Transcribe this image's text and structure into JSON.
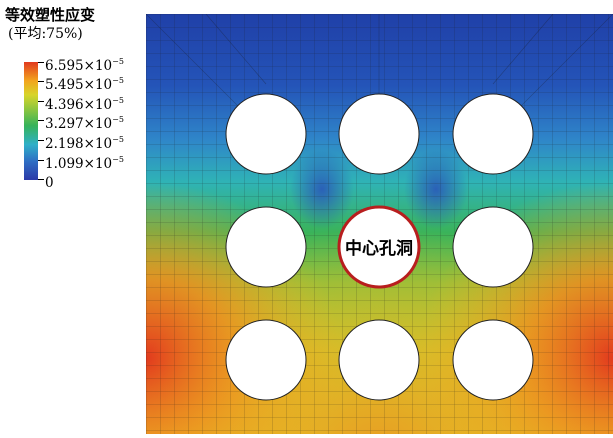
{
  "legend": {
    "title": "等效塑性应变",
    "subtitle": "(平均:75%)",
    "ticks": [
      {
        "mantissa": "6.595",
        "suffix": "×10",
        "exp": "−5"
      },
      {
        "mantissa": "5.495",
        "suffix": "×10",
        "exp": "−5"
      },
      {
        "mantissa": "4.396",
        "suffix": "×10",
        "exp": "−5"
      },
      {
        "mantissa": "3.297",
        "suffix": "×10",
        "exp": "−5"
      },
      {
        "mantissa": "2.198",
        "suffix": "×10",
        "exp": "−5"
      },
      {
        "mantissa": "1.099",
        "suffix": "×10",
        "exp": "−5"
      },
      {
        "mantissa": "0",
        "suffix": "",
        "exp": ""
      }
    ],
    "colors": [
      "#e13a1f",
      "#f2a51f",
      "#d7d52a",
      "#8dc63f",
      "#36b35a",
      "#2fb0c8",
      "#2f6fc4",
      "#2b3aa8"
    ]
  },
  "diagram": {
    "center_hole_label": "中心孔洞",
    "center_hole_outline_color": "#b81e1e",
    "holes_grid": "3x3"
  }
}
